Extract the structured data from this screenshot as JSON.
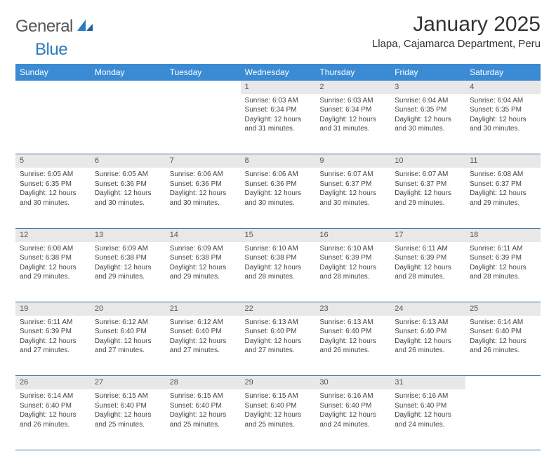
{
  "brand": {
    "name_a": "General",
    "name_b": "Blue"
  },
  "title": "January 2025",
  "location": "Llapa, Cajamarca Department, Peru",
  "colors": {
    "header_bg": "#3b8bd4",
    "header_text": "#ffffff",
    "daynum_bg": "#e8e8e8",
    "row_border": "#3b6fa0",
    "brand_blue": "#2b7bbf"
  },
  "day_headers": [
    "Sunday",
    "Monday",
    "Tuesday",
    "Wednesday",
    "Thursday",
    "Friday",
    "Saturday"
  ],
  "weeks": [
    {
      "nums": [
        "",
        "",
        "",
        "1",
        "2",
        "3",
        "4"
      ],
      "cells": [
        {
          "empty": true
        },
        {
          "empty": true
        },
        {
          "empty": true
        },
        {
          "sunrise": "Sunrise: 6:03 AM",
          "sunset": "Sunset: 6:34 PM",
          "day1": "Daylight: 12 hours",
          "day2": "and 31 minutes."
        },
        {
          "sunrise": "Sunrise: 6:03 AM",
          "sunset": "Sunset: 6:34 PM",
          "day1": "Daylight: 12 hours",
          "day2": "and 31 minutes."
        },
        {
          "sunrise": "Sunrise: 6:04 AM",
          "sunset": "Sunset: 6:35 PM",
          "day1": "Daylight: 12 hours",
          "day2": "and 30 minutes."
        },
        {
          "sunrise": "Sunrise: 6:04 AM",
          "sunset": "Sunset: 6:35 PM",
          "day1": "Daylight: 12 hours",
          "day2": "and 30 minutes."
        }
      ]
    },
    {
      "nums": [
        "5",
        "6",
        "7",
        "8",
        "9",
        "10",
        "11"
      ],
      "cells": [
        {
          "sunrise": "Sunrise: 6:05 AM",
          "sunset": "Sunset: 6:35 PM",
          "day1": "Daylight: 12 hours",
          "day2": "and 30 minutes."
        },
        {
          "sunrise": "Sunrise: 6:05 AM",
          "sunset": "Sunset: 6:36 PM",
          "day1": "Daylight: 12 hours",
          "day2": "and 30 minutes."
        },
        {
          "sunrise": "Sunrise: 6:06 AM",
          "sunset": "Sunset: 6:36 PM",
          "day1": "Daylight: 12 hours",
          "day2": "and 30 minutes."
        },
        {
          "sunrise": "Sunrise: 6:06 AM",
          "sunset": "Sunset: 6:36 PM",
          "day1": "Daylight: 12 hours",
          "day2": "and 30 minutes."
        },
        {
          "sunrise": "Sunrise: 6:07 AM",
          "sunset": "Sunset: 6:37 PM",
          "day1": "Daylight: 12 hours",
          "day2": "and 30 minutes."
        },
        {
          "sunrise": "Sunrise: 6:07 AM",
          "sunset": "Sunset: 6:37 PM",
          "day1": "Daylight: 12 hours",
          "day2": "and 29 minutes."
        },
        {
          "sunrise": "Sunrise: 6:08 AM",
          "sunset": "Sunset: 6:37 PM",
          "day1": "Daylight: 12 hours",
          "day2": "and 29 minutes."
        }
      ]
    },
    {
      "nums": [
        "12",
        "13",
        "14",
        "15",
        "16",
        "17",
        "18"
      ],
      "cells": [
        {
          "sunrise": "Sunrise: 6:08 AM",
          "sunset": "Sunset: 6:38 PM",
          "day1": "Daylight: 12 hours",
          "day2": "and 29 minutes."
        },
        {
          "sunrise": "Sunrise: 6:09 AM",
          "sunset": "Sunset: 6:38 PM",
          "day1": "Daylight: 12 hours",
          "day2": "and 29 minutes."
        },
        {
          "sunrise": "Sunrise: 6:09 AM",
          "sunset": "Sunset: 6:38 PM",
          "day1": "Daylight: 12 hours",
          "day2": "and 29 minutes."
        },
        {
          "sunrise": "Sunrise: 6:10 AM",
          "sunset": "Sunset: 6:38 PM",
          "day1": "Daylight: 12 hours",
          "day2": "and 28 minutes."
        },
        {
          "sunrise": "Sunrise: 6:10 AM",
          "sunset": "Sunset: 6:39 PM",
          "day1": "Daylight: 12 hours",
          "day2": "and 28 minutes."
        },
        {
          "sunrise": "Sunrise: 6:11 AM",
          "sunset": "Sunset: 6:39 PM",
          "day1": "Daylight: 12 hours",
          "day2": "and 28 minutes."
        },
        {
          "sunrise": "Sunrise: 6:11 AM",
          "sunset": "Sunset: 6:39 PM",
          "day1": "Daylight: 12 hours",
          "day2": "and 28 minutes."
        }
      ]
    },
    {
      "nums": [
        "19",
        "20",
        "21",
        "22",
        "23",
        "24",
        "25"
      ],
      "cells": [
        {
          "sunrise": "Sunrise: 6:11 AM",
          "sunset": "Sunset: 6:39 PM",
          "day1": "Daylight: 12 hours",
          "day2": "and 27 minutes."
        },
        {
          "sunrise": "Sunrise: 6:12 AM",
          "sunset": "Sunset: 6:40 PM",
          "day1": "Daylight: 12 hours",
          "day2": "and 27 minutes."
        },
        {
          "sunrise": "Sunrise: 6:12 AM",
          "sunset": "Sunset: 6:40 PM",
          "day1": "Daylight: 12 hours",
          "day2": "and 27 minutes."
        },
        {
          "sunrise": "Sunrise: 6:13 AM",
          "sunset": "Sunset: 6:40 PM",
          "day1": "Daylight: 12 hours",
          "day2": "and 27 minutes."
        },
        {
          "sunrise": "Sunrise: 6:13 AM",
          "sunset": "Sunset: 6:40 PM",
          "day1": "Daylight: 12 hours",
          "day2": "and 26 minutes."
        },
        {
          "sunrise": "Sunrise: 6:13 AM",
          "sunset": "Sunset: 6:40 PM",
          "day1": "Daylight: 12 hours",
          "day2": "and 26 minutes."
        },
        {
          "sunrise": "Sunrise: 6:14 AM",
          "sunset": "Sunset: 6:40 PM",
          "day1": "Daylight: 12 hours",
          "day2": "and 26 minutes."
        }
      ]
    },
    {
      "nums": [
        "26",
        "27",
        "28",
        "29",
        "30",
        "31",
        ""
      ],
      "cells": [
        {
          "sunrise": "Sunrise: 6:14 AM",
          "sunset": "Sunset: 6:40 PM",
          "day1": "Daylight: 12 hours",
          "day2": "and 26 minutes."
        },
        {
          "sunrise": "Sunrise: 6:15 AM",
          "sunset": "Sunset: 6:40 PM",
          "day1": "Daylight: 12 hours",
          "day2": "and 25 minutes."
        },
        {
          "sunrise": "Sunrise: 6:15 AM",
          "sunset": "Sunset: 6:40 PM",
          "day1": "Daylight: 12 hours",
          "day2": "and 25 minutes."
        },
        {
          "sunrise": "Sunrise: 6:15 AM",
          "sunset": "Sunset: 6:40 PM",
          "day1": "Daylight: 12 hours",
          "day2": "and 25 minutes."
        },
        {
          "sunrise": "Sunrise: 6:16 AM",
          "sunset": "Sunset: 6:40 PM",
          "day1": "Daylight: 12 hours",
          "day2": "and 24 minutes."
        },
        {
          "sunrise": "Sunrise: 6:16 AM",
          "sunset": "Sunset: 6:40 PM",
          "day1": "Daylight: 12 hours",
          "day2": "and 24 minutes."
        },
        {
          "empty": true
        }
      ]
    }
  ]
}
